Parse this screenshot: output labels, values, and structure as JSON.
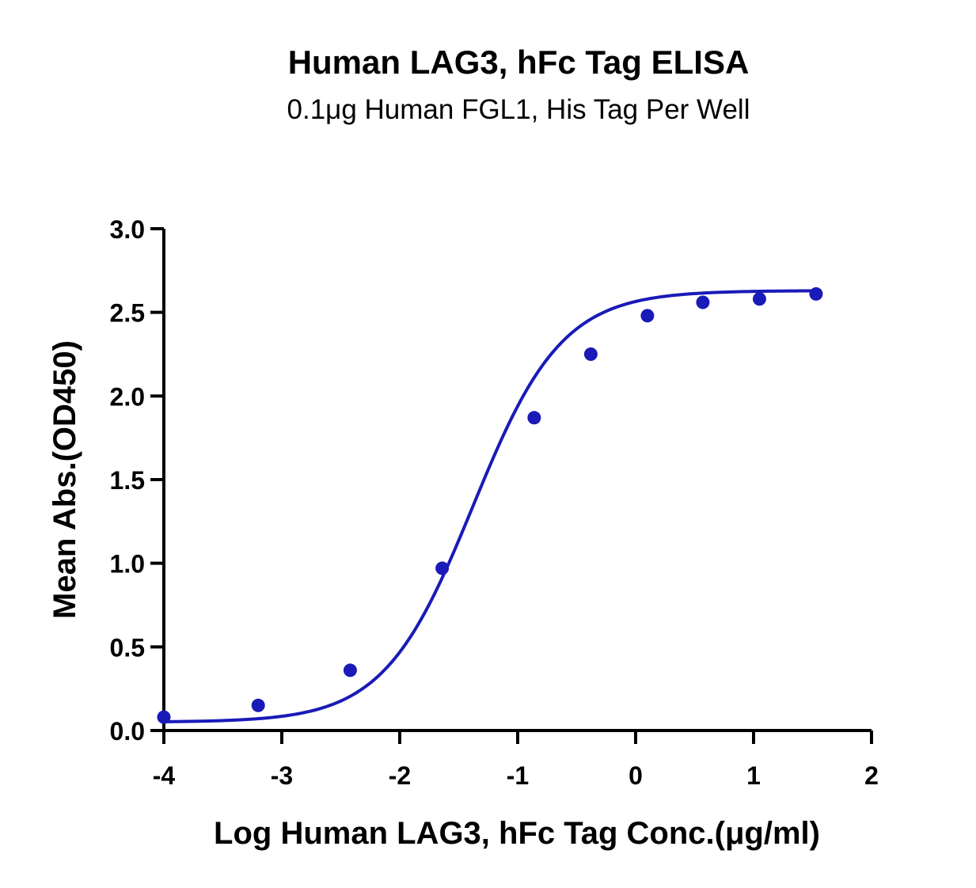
{
  "chart_data": {
    "type": "scatter",
    "title": "Human LAG3, hFc Tag ELISA",
    "subtitle": "0.1μg Human FGL1, His Tag Per Well",
    "xlabel": "Log Human LAG3, hFc Tag Conc.(μg/ml)",
    "ylabel": "Mean Abs.(OD450)",
    "xlim": [
      -4,
      2
    ],
    "ylim": [
      0,
      3.0
    ],
    "x_ticks": [
      "-4",
      "-3",
      "-2",
      "-1",
      "0",
      "1",
      "2"
    ],
    "y_ticks": [
      "0.0",
      "0.5",
      "1.0",
      "1.5",
      "2.0",
      "2.5",
      "3.0"
    ],
    "grid": false,
    "color": "#1a1ab8",
    "series": [
      {
        "x": [
          -4.0,
          -3.2,
          -2.42,
          -1.64,
          -0.86,
          -0.38,
          0.1,
          0.57,
          1.05,
          1.53
        ],
        "y": [
          0.08,
          0.15,
          0.36,
          0.97,
          1.87,
          2.25,
          2.48,
          2.56,
          2.58,
          2.61
        ]
      }
    ],
    "fit": {
      "model": "four-parameter logistic",
      "bottom": 0.05,
      "top": 2.63,
      "log_ec50": -1.38,
      "hill_slope": 1.15
    }
  }
}
